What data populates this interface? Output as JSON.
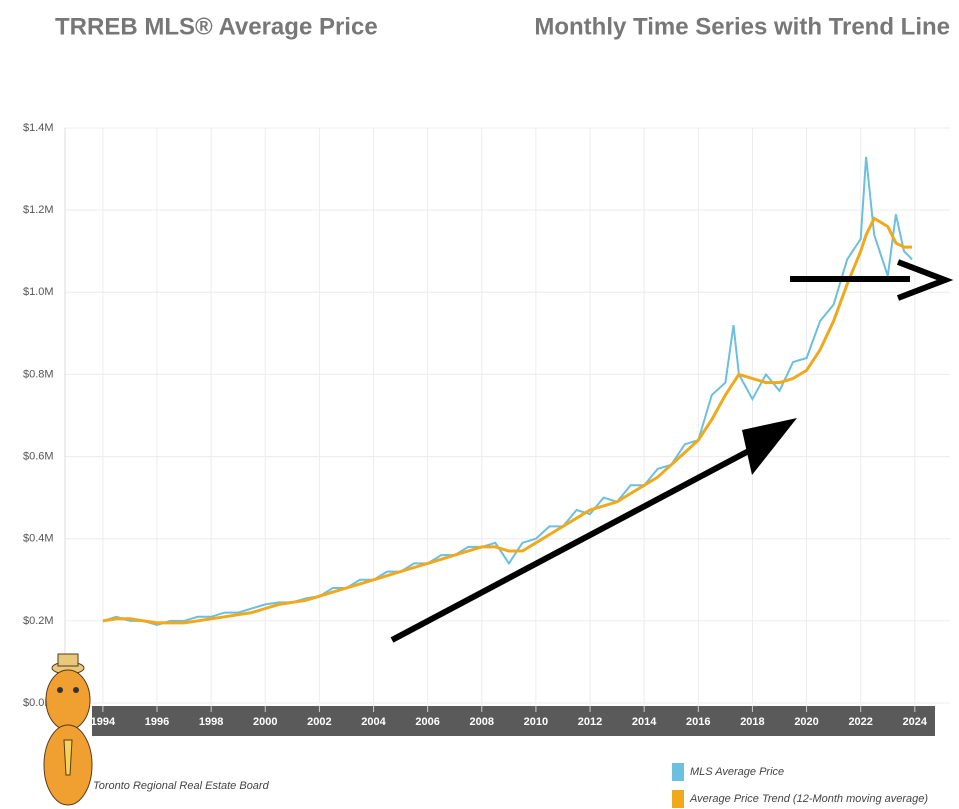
{
  "chart_data": {
    "type": "line",
    "title": "TRREB MLS® Average Price",
    "subtitle": "Monthly Time Series with Trend Line",
    "source": "Toronto Regional Real Estate Board",
    "x": [
      1994,
      1994.5,
      1995,
      1995.5,
      1996,
      1996.5,
      1997,
      1997.5,
      1998,
      1998.5,
      1999,
      1999.5,
      2000,
      2000.5,
      2001,
      2001.5,
      2002,
      2002.5,
      2003,
      2003.5,
      2004,
      2004.5,
      2005,
      2005.5,
      2006,
      2006.5,
      2007,
      2007.5,
      2008,
      2008.5,
      2009,
      2009.5,
      2010,
      2010.5,
      2011,
      2011.5,
      2012,
      2012.5,
      2013,
      2013.5,
      2014,
      2014.5,
      2015,
      2015.5,
      2016,
      2016.5,
      2017,
      2017.3,
      2017.5,
      2018,
      2018.5,
      2019,
      2019.5,
      2020,
      2020.5,
      2021,
      2021.5,
      2022,
      2022.2,
      2022.5,
      2023,
      2023.3,
      2023.6,
      2023.9
    ],
    "series": [
      {
        "name": "MLS Average Price",
        "color": "#6bbfdf",
        "values": [
          0.2,
          0.21,
          0.2,
          0.2,
          0.19,
          0.2,
          0.2,
          0.21,
          0.21,
          0.22,
          0.22,
          0.23,
          0.24,
          0.245,
          0.245,
          0.255,
          0.26,
          0.28,
          0.28,
          0.3,
          0.3,
          0.32,
          0.32,
          0.34,
          0.34,
          0.36,
          0.36,
          0.38,
          0.38,
          0.39,
          0.34,
          0.39,
          0.4,
          0.43,
          0.43,
          0.47,
          0.46,
          0.5,
          0.49,
          0.53,
          0.53,
          0.57,
          0.58,
          0.63,
          0.64,
          0.75,
          0.78,
          0.92,
          0.8,
          0.74,
          0.8,
          0.76,
          0.83,
          0.84,
          0.93,
          0.97,
          1.08,
          1.13,
          1.33,
          1.14,
          1.04,
          1.19,
          1.1,
          1.08
        ]
      },
      {
        "name": "Average Price Trend (12-Month moving average)",
        "color": "#f0a81c",
        "values": [
          0.2,
          0.205,
          0.205,
          0.2,
          0.195,
          0.195,
          0.195,
          0.2,
          0.205,
          0.21,
          0.215,
          0.22,
          0.23,
          0.24,
          0.245,
          0.25,
          0.26,
          0.27,
          0.28,
          0.29,
          0.3,
          0.31,
          0.32,
          0.33,
          0.34,
          0.35,
          0.36,
          0.37,
          0.38,
          0.38,
          0.37,
          0.37,
          0.39,
          0.41,
          0.43,
          0.45,
          0.47,
          0.48,
          0.49,
          0.51,
          0.53,
          0.55,
          0.58,
          0.61,
          0.64,
          0.69,
          0.75,
          0.78,
          0.8,
          0.79,
          0.78,
          0.78,
          0.79,
          0.81,
          0.86,
          0.93,
          1.02,
          1.1,
          1.14,
          1.18,
          1.16,
          1.12,
          1.11,
          1.11
        ]
      }
    ],
    "xlim": [
      1992.6,
      2025.3
    ],
    "xticks": [
      1994,
      1996,
      1998,
      2000,
      2002,
      2004,
      2006,
      2008,
      2010,
      2012,
      2014,
      2016,
      2018,
      2020,
      2022,
      2024
    ],
    "ylim": [
      0,
      1.4
    ],
    "yticks": [
      {
        "value": 0,
        "label": "$0.0M"
      },
      {
        "value": 0.2,
        "label": "$0.2M"
      },
      {
        "value": 0.4,
        "label": "$0.4M"
      },
      {
        "value": 0.6,
        "label": "$0.6M"
      },
      {
        "value": 0.8,
        "label": "$0.8M"
      },
      {
        "value": 1.0,
        "label": "$1.0M"
      },
      {
        "value": 1.2,
        "label": "$1.2M"
      },
      {
        "value": 1.4,
        "label": "$1.4M"
      }
    ],
    "grid": true
  }
}
